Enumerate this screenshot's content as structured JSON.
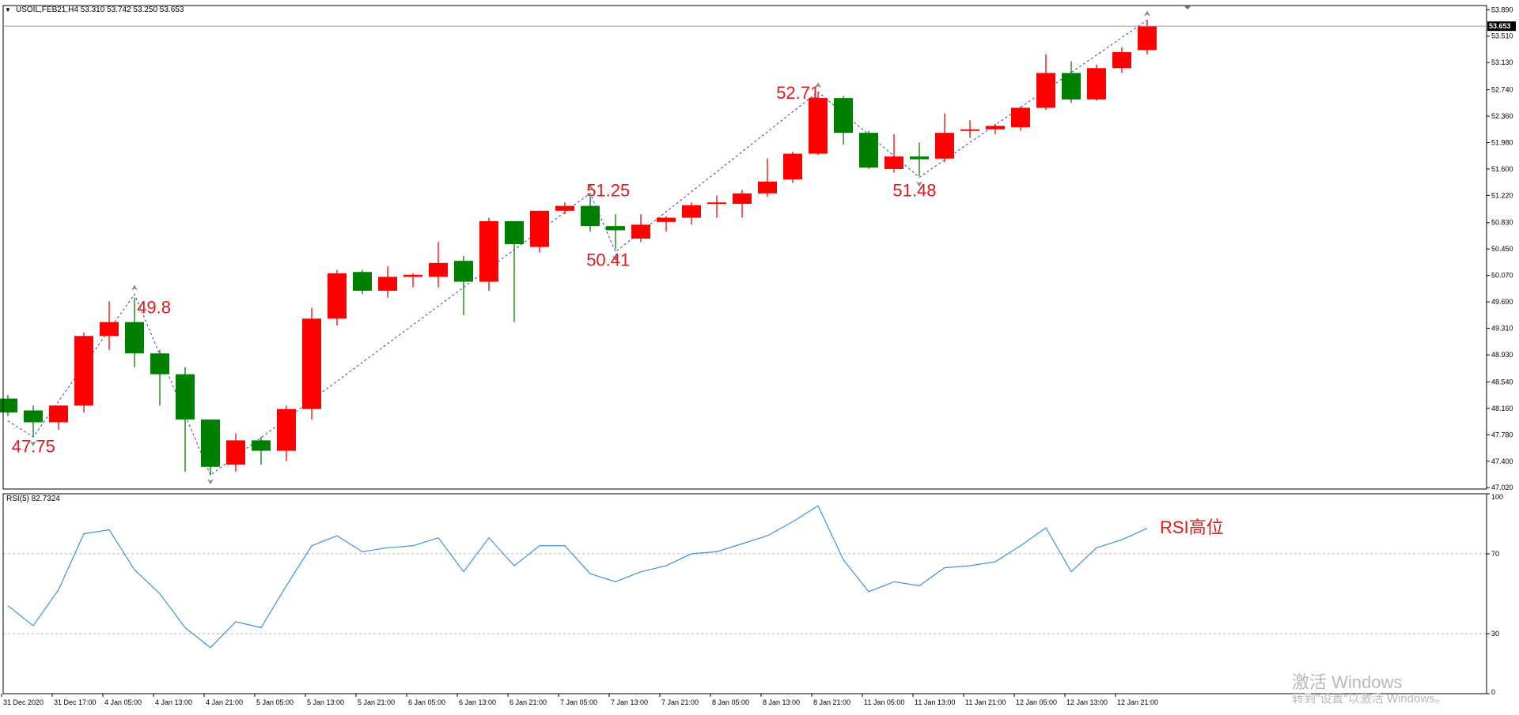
{
  "window": {
    "title_info": "USOIL,FEB21,H4 53.310 53.742 53.250 53.653",
    "collapse_glyph": "▼"
  },
  "colors": {
    "bull": "#ff0000",
    "bear": "#008000",
    "zigzag": "#3b3bc8",
    "rsi_line": "#3c91e6",
    "annotation": "#e01a1a",
    "axis": "#000000",
    "price_label_bg": "#000000"
  },
  "watermark": {
    "line1": "激活 Windows",
    "line2": "转到\"设置\"以激活 Windows。"
  },
  "chart_data": [
    {
      "type": "candlestick",
      "title": "USOIL,FEB21,H4",
      "ylim": [
        47.0,
        53.95
      ],
      "y_ticks": [
        "53.890",
        "53.510",
        "53.130",
        "52.740",
        "52.360",
        "51.980",
        "51.600",
        "51.220",
        "50.830",
        "50.450",
        "50.070",
        "49.690",
        "49.310",
        "48.930",
        "48.540",
        "48.160",
        "47.780",
        "47.400",
        "47.020"
      ],
      "x_ticks": [
        "31 Dec 2020",
        "31 Dec 17:00",
        "4 Jan 05:00",
        "4 Jan 13:00",
        "4 Jan 21:00",
        "5 Jan 05:00",
        "5 Jan 13:00",
        "5 Jan 21:00",
        "6 Jan 05:00",
        "6 Jan 13:00",
        "6 Jan 21:00",
        "7 Jan 05:00",
        "7 Jan 13:00",
        "7 Jan 21:00",
        "8 Jan 05:00",
        "8 Jan 13:00",
        "8 Jan 21:00",
        "11 Jan 05:00",
        "11 Jan 13:00",
        "11 Jan 21:00",
        "12 Jan 05:00",
        "12 Jan 13:00",
        "12 Jan 21:00"
      ],
      "candles": [
        {
          "o": 48.3,
          "h": 48.35,
          "l": 48.05,
          "c": 48.1
        },
        {
          "o": 48.13,
          "h": 48.2,
          "l": 47.75,
          "c": 47.96
        },
        {
          "o": 47.96,
          "h": 48.2,
          "l": 47.85,
          "c": 48.2
        },
        {
          "o": 48.2,
          "h": 49.25,
          "l": 48.1,
          "c": 49.2
        },
        {
          "o": 49.2,
          "h": 49.7,
          "l": 49.0,
          "c": 49.4
        },
        {
          "o": 49.4,
          "h": 49.75,
          "l": 48.75,
          "c": 48.95
        },
        {
          "o": 48.95,
          "h": 49.0,
          "l": 48.2,
          "c": 48.65
        },
        {
          "o": 48.65,
          "h": 48.75,
          "l": 47.25,
          "c": 48.0
        },
        {
          "o": 48.0,
          "h": 48.0,
          "l": 47.2,
          "c": 47.32
        },
        {
          "o": 47.35,
          "h": 47.8,
          "l": 47.25,
          "c": 47.7
        },
        {
          "o": 47.7,
          "h": 47.75,
          "l": 47.35,
          "c": 47.55
        },
        {
          "o": 47.55,
          "h": 48.2,
          "l": 47.4,
          "c": 48.15
        },
        {
          "o": 48.15,
          "h": 49.6,
          "l": 48.0,
          "c": 49.45
        },
        {
          "o": 49.45,
          "h": 50.15,
          "l": 49.35,
          "c": 50.1
        },
        {
          "o": 50.12,
          "h": 50.15,
          "l": 49.8,
          "c": 49.85
        },
        {
          "o": 49.85,
          "h": 50.2,
          "l": 49.75,
          "c": 50.05
        },
        {
          "o": 50.05,
          "h": 50.1,
          "l": 49.9,
          "c": 50.08
        },
        {
          "o": 50.05,
          "h": 50.55,
          "l": 49.9,
          "c": 50.25
        },
        {
          "o": 50.28,
          "h": 50.35,
          "l": 49.5,
          "c": 49.98
        },
        {
          "o": 49.98,
          "h": 50.9,
          "l": 49.85,
          "c": 50.85
        },
        {
          "o": 50.85,
          "h": 50.85,
          "l": 49.4,
          "c": 50.52
        },
        {
          "o": 50.48,
          "h": 51.0,
          "l": 50.4,
          "c": 51.0
        },
        {
          "o": 51.0,
          "h": 51.12,
          "l": 50.95,
          "c": 51.07
        },
        {
          "o": 51.07,
          "h": 51.2,
          "l": 50.7,
          "c": 50.78
        },
        {
          "o": 50.78,
          "h": 50.95,
          "l": 50.45,
          "c": 50.72
        },
        {
          "o": 50.6,
          "h": 50.95,
          "l": 50.55,
          "c": 50.8
        },
        {
          "o": 50.84,
          "h": 50.92,
          "l": 50.7,
          "c": 50.9
        },
        {
          "o": 50.9,
          "h": 51.12,
          "l": 50.8,
          "c": 51.08
        },
        {
          "o": 51.1,
          "h": 51.22,
          "l": 50.9,
          "c": 51.12
        },
        {
          "o": 51.1,
          "h": 51.3,
          "l": 50.9,
          "c": 51.25
        },
        {
          "o": 51.25,
          "h": 51.75,
          "l": 51.2,
          "c": 51.42
        },
        {
          "o": 51.45,
          "h": 51.85,
          "l": 51.4,
          "c": 51.82
        },
        {
          "o": 51.82,
          "h": 52.7,
          "l": 51.8,
          "c": 52.62
        },
        {
          "o": 52.62,
          "h": 52.65,
          "l": 51.95,
          "c": 52.12
        },
        {
          "o": 52.12,
          "h": 52.15,
          "l": 51.6,
          "c": 51.62
        },
        {
          "o": 51.6,
          "h": 52.1,
          "l": 51.55,
          "c": 51.78
        },
        {
          "o": 51.78,
          "h": 51.98,
          "l": 51.5,
          "c": 51.74
        },
        {
          "o": 51.75,
          "h": 52.4,
          "l": 51.7,
          "c": 52.12
        },
        {
          "o": 52.15,
          "h": 52.3,
          "l": 52.05,
          "c": 52.17
        },
        {
          "o": 52.17,
          "h": 52.25,
          "l": 52.1,
          "c": 52.22
        },
        {
          "o": 52.2,
          "h": 52.5,
          "l": 52.15,
          "c": 52.48
        },
        {
          "o": 52.48,
          "h": 53.25,
          "l": 52.45,
          "c": 52.98
        },
        {
          "o": 52.98,
          "h": 53.15,
          "l": 52.55,
          "c": 52.6
        },
        {
          "o": 52.6,
          "h": 53.1,
          "l": 52.58,
          "c": 53.05
        },
        {
          "o": 53.05,
          "h": 53.35,
          "l": 52.98,
          "c": 53.28
        },
        {
          "o": 53.31,
          "h": 53.74,
          "l": 53.25,
          "c": 53.65
        }
      ],
      "zigzag": [
        {
          "i": 0,
          "v": 47.98
        },
        {
          "i": 1,
          "v": 47.75
        },
        {
          "i": 5,
          "v": 49.8
        },
        {
          "i": 8,
          "v": 47.2
        },
        {
          "i": 23,
          "v": 51.25
        },
        {
          "i": 24,
          "v": 50.41
        },
        {
          "i": 32,
          "v": 52.71
        },
        {
          "i": 36,
          "v": 51.48
        },
        {
          "i": 45,
          "v": 53.74
        }
      ],
      "annotations": [
        {
          "i": 0.4,
          "v": 47.62,
          "text": "47.75"
        },
        {
          "i": 5.35,
          "v": 49.62,
          "text": "49.8"
        },
        {
          "i": 23.1,
          "v": 51.3,
          "text": "51.25"
        },
        {
          "i": 23.1,
          "v": 50.3,
          "text": "50.41"
        },
        {
          "i": 30.6,
          "v": 52.7,
          "text": "52.71"
        },
        {
          "i": 35.2,
          "v": 51.3,
          "text": "51.48"
        }
      ],
      "current_price": "53.653",
      "current_value": 53.653
    },
    {
      "type": "line",
      "title": "RSI(5) 82.7324",
      "ylim": [
        0,
        100
      ],
      "y_ticks": [
        "100",
        "70",
        "30",
        "0"
      ],
      "levels": [
        70,
        30
      ],
      "values": [
        44,
        34,
        52,
        80,
        82,
        62,
        50,
        33,
        23,
        36,
        33,
        54,
        74,
        79,
        71,
        73,
        74,
        78,
        61,
        78,
        64,
        74,
        74,
        60,
        56,
        61,
        64,
        70,
        71,
        75,
        79,
        86,
        94,
        67,
        51,
        56,
        54,
        63,
        64,
        66,
        74,
        83,
        61,
        73,
        77,
        82.73
      ],
      "annotation": "RSI高位"
    }
  ]
}
